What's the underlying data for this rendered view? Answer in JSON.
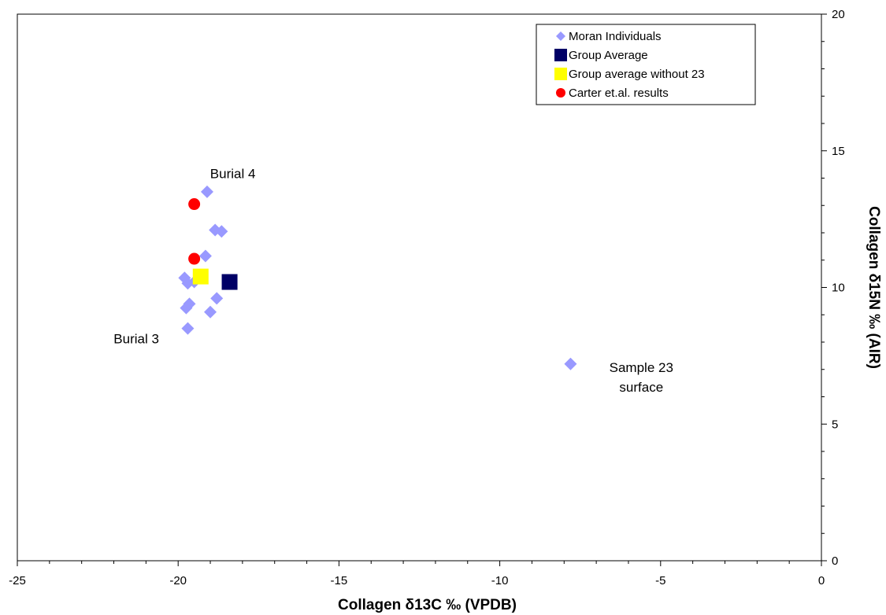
{
  "chart_data": {
    "type": "scatter",
    "title": "",
    "xlabel": "Collagen δ13C ‰ (VPDB)",
    "ylabel": "Collagen δ15N ‰ (AIR)",
    "xlim": [
      -25,
      0
    ],
    "ylim": [
      0,
      20
    ],
    "x_ticks": [
      -25,
      -20,
      -15,
      -10,
      -5,
      0
    ],
    "y_ticks": [
      0,
      5,
      10,
      15,
      20
    ],
    "grid": false,
    "legend_position": "top-right",
    "series": [
      {
        "name": "Moran Individuals",
        "marker": "diamond",
        "color": "#9999ff",
        "points": [
          {
            "x": -19.1,
            "y": 13.5
          },
          {
            "x": -18.85,
            "y": 12.1
          },
          {
            "x": -18.65,
            "y": 12.05
          },
          {
            "x": -19.15,
            "y": 11.15
          },
          {
            "x": -19.8,
            "y": 10.35
          },
          {
            "x": -19.5,
            "y": 10.2
          },
          {
            "x": -19.7,
            "y": 10.15
          },
          {
            "x": -18.8,
            "y": 9.6
          },
          {
            "x": -19.65,
            "y": 9.4
          },
          {
            "x": -19.75,
            "y": 9.25
          },
          {
            "x": -19.0,
            "y": 9.1
          },
          {
            "x": -19.7,
            "y": 8.5
          },
          {
            "x": -7.8,
            "y": 7.2
          }
        ]
      },
      {
        "name": "Group Average",
        "marker": "square",
        "color": "#000066",
        "points": [
          {
            "x": -18.4,
            "y": 10.2
          }
        ]
      },
      {
        "name": "Group average without 23",
        "marker": "square",
        "color": "#ffff00",
        "points": [
          {
            "x": -19.3,
            "y": 10.4
          }
        ]
      },
      {
        "name": "Carter et.al. results",
        "marker": "circle",
        "color": "#ff0000",
        "points": [
          {
            "x": -19.5,
            "y": 13.05
          },
          {
            "x": -19.5,
            "y": 11.05
          }
        ]
      }
    ],
    "annotations": [
      {
        "lines": [
          "Burial 4"
        ],
        "x": -18.3,
        "y": 14.0,
        "anchor": "middle"
      },
      {
        "lines": [
          "Burial 3"
        ],
        "x": -21.3,
        "y": 7.95,
        "anchor": "middle"
      },
      {
        "lines": [
          "Sample 23",
          "surface"
        ],
        "x": -5.6,
        "y": 6.9,
        "anchor": "middle"
      }
    ]
  }
}
